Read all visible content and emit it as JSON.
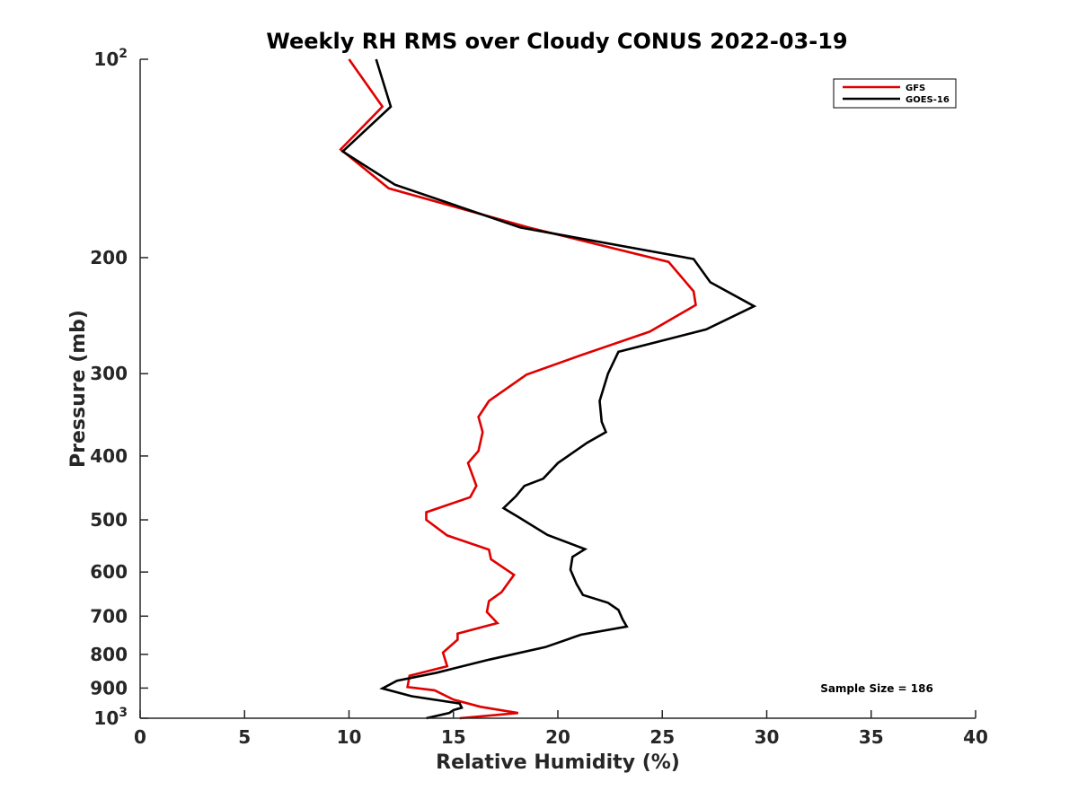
{
  "chart_data": {
    "type": "line",
    "title": "Weekly RH RMS over Cloudy CONUS 2022-03-19",
    "xlabel": "Relative Humidity (%)",
    "ylabel": "Pressure (mb)",
    "xlim": [
      0,
      40
    ],
    "ylim": [
      100,
      1000
    ],
    "y_scale": "log",
    "y_reversed": true,
    "grid": false,
    "legend_position": "top-right",
    "x_ticks": [
      "0",
      "5",
      "10",
      "15",
      "20",
      "25",
      "30",
      "35",
      "40"
    ],
    "y_ticks": [
      {
        "value": 100,
        "base": "10",
        "exp": "2"
      },
      {
        "value": 200,
        "label": "200"
      },
      {
        "value": 300,
        "label": "300"
      },
      {
        "value": 400,
        "label": "400"
      },
      {
        "value": 500,
        "label": "500"
      },
      {
        "value": 600,
        "label": "600"
      },
      {
        "value": 700,
        "label": "700"
      },
      {
        "value": 800,
        "label": "800"
      },
      {
        "value": 900,
        "label": "900"
      },
      {
        "value": 1000,
        "base": "10",
        "exp": "3"
      }
    ],
    "annotation": "Sample Size = 186",
    "series": [
      {
        "name": "GFS",
        "color": "#e00000",
        "points": [
          [
            10.0,
            100
          ],
          [
            11.6,
            118
          ],
          [
            9.6,
            137
          ],
          [
            11.9,
            157
          ],
          [
            18.6,
            180
          ],
          [
            25.3,
            203
          ],
          [
            26.5,
            225
          ],
          [
            26.6,
            236
          ],
          [
            24.4,
            259
          ],
          [
            21.0,
            282
          ],
          [
            18.5,
            301
          ],
          [
            16.7,
            330
          ],
          [
            16.2,
            349
          ],
          [
            16.4,
            368
          ],
          [
            16.2,
            393
          ],
          [
            15.7,
            410
          ],
          [
            16.1,
            444
          ],
          [
            15.8,
            462
          ],
          [
            13.7,
            487
          ],
          [
            13.7,
            500
          ],
          [
            14.7,
            528
          ],
          [
            16.7,
            555
          ],
          [
            16.8,
            574
          ],
          [
            17.9,
            606
          ],
          [
            17.3,
            644
          ],
          [
            16.7,
            664
          ],
          [
            16.6,
            690
          ],
          [
            17.1,
            717
          ],
          [
            15.2,
            744
          ],
          [
            15.2,
            760
          ],
          [
            14.5,
            795
          ],
          [
            14.7,
            834
          ],
          [
            12.9,
            862
          ],
          [
            12.8,
            897
          ],
          [
            14.1,
            907
          ],
          [
            15.0,
            937
          ],
          [
            16.3,
            961
          ],
          [
            18.1,
            982
          ],
          [
            15.3,
            1000
          ]
        ]
      },
      {
        "name": "GOES-16",
        "color": "#000000",
        "points": [
          [
            11.3,
            100
          ],
          [
            12.0,
            118
          ],
          [
            9.7,
            138
          ],
          [
            12.2,
            155
          ],
          [
            18.2,
            180
          ],
          [
            26.5,
            201
          ],
          [
            27.3,
            218
          ],
          [
            29.4,
            237
          ],
          [
            27.1,
            257
          ],
          [
            22.9,
            278
          ],
          [
            22.4,
            300
          ],
          [
            22.0,
            330
          ],
          [
            22.1,
            355
          ],
          [
            22.3,
            368
          ],
          [
            21.4,
            382
          ],
          [
            20.0,
            410
          ],
          [
            19.3,
            433
          ],
          [
            18.4,
            444
          ],
          [
            18.0,
            460
          ],
          [
            17.4,
            480
          ],
          [
            18.1,
            495
          ],
          [
            19.5,
            527
          ],
          [
            21.3,
            554
          ],
          [
            20.7,
            569
          ],
          [
            20.6,
            595
          ],
          [
            20.9,
            626
          ],
          [
            21.2,
            650
          ],
          [
            22.4,
            668
          ],
          [
            22.9,
            685
          ],
          [
            23.1,
            708
          ],
          [
            23.3,
            726
          ],
          [
            21.1,
            747
          ],
          [
            19.4,
            780
          ],
          [
            16.7,
            815
          ],
          [
            14.2,
            853
          ],
          [
            12.3,
            877
          ],
          [
            11.6,
            901
          ],
          [
            13.0,
            926
          ],
          [
            15.3,
            950
          ],
          [
            15.4,
            964
          ],
          [
            15.0,
            972
          ],
          [
            14.8,
            982
          ],
          [
            13.7,
            1000
          ]
        ]
      }
    ]
  }
}
